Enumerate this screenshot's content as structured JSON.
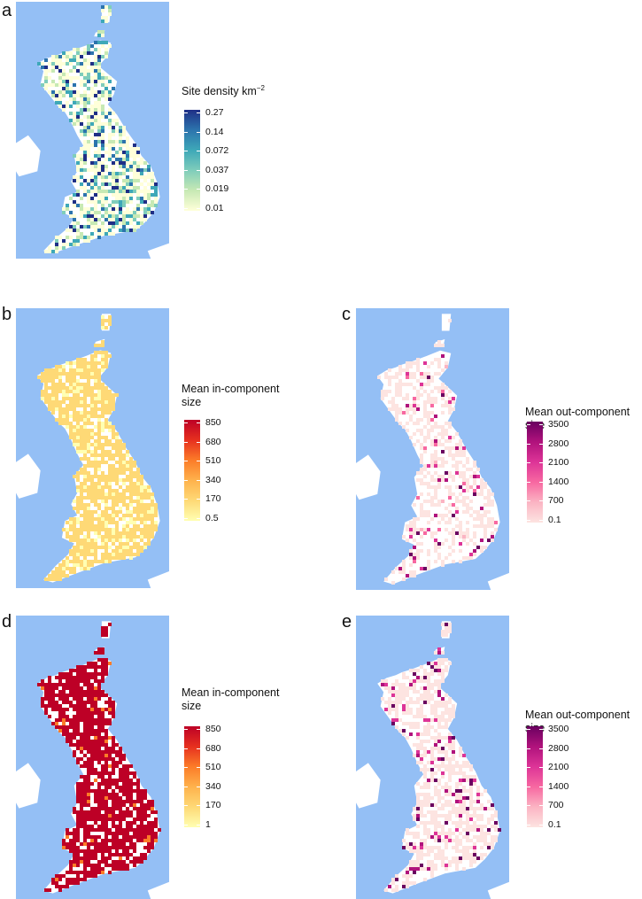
{
  "panels": [
    {
      "letter": "a",
      "legend": {
        "title": "Site density km",
        "title_sup": "−2",
        "ticks": [
          "0.27",
          "0.14",
          "0.072",
          "0.037",
          "0.019",
          "0.01"
        ],
        "colors": [
          "#1f2f86",
          "#2c74ad",
          "#3ea8b8",
          "#7fcdbb",
          "#c7e9b4",
          "#ffffd9"
        ],
        "scale": "log"
      }
    },
    {
      "letter": "b",
      "legend": {
        "title": "Mean in-component",
        "title2": "size",
        "ticks": [
          "850",
          "680",
          "510",
          "340",
          "170",
          "0.5"
        ],
        "colors": [
          "#bd0026",
          "#e6301f",
          "#fc7c28",
          "#feb24c",
          "#fed976",
          "#ffffb2"
        ]
      }
    },
    {
      "letter": "c",
      "legend": {
        "title": "Mean out-component",
        "title2": "size",
        "ticks": [
          "3500",
          "2800",
          "2100",
          "1400",
          "700",
          "0.1"
        ],
        "colors": [
          "#6a0060",
          "#b0127c",
          "#dd3497",
          "#f768a1",
          "#fbb4c3",
          "#fde4e1"
        ]
      }
    },
    {
      "letter": "d",
      "legend": {
        "title": "Mean in-component",
        "title2": "size",
        "ticks": [
          "850",
          "680",
          "510",
          "340",
          "170",
          "1"
        ],
        "colors": [
          "#bd0026",
          "#e6301f",
          "#fc7c28",
          "#feb24c",
          "#fed976",
          "#ffffb2"
        ]
      }
    },
    {
      "letter": "e",
      "legend": {
        "title": "Mean out-component",
        "title2": "size",
        "ticks": [
          "3500",
          "2800",
          "2100",
          "1400",
          "700",
          "0.1"
        ],
        "colors": [
          "#6a0060",
          "#b0127c",
          "#dd3497",
          "#f768a1",
          "#fbb4c3",
          "#fde4e1"
        ]
      }
    }
  ],
  "colors": {
    "sea": "#94bff5",
    "land_outline": "#ffffff",
    "background": "#ffffff"
  }
}
